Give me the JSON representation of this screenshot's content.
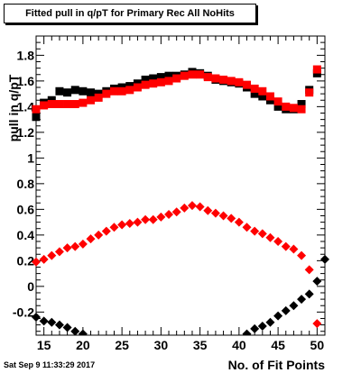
{
  "title": "Fitted pull in q/pT for Primary Rec All NoHits",
  "timestamp": "Sat Sep  9 11:33:29 2017",
  "chart_data": {
    "type": "scatter",
    "xlabel": "No. of Fit Points",
    "ylabel": "pull in q/pT",
    "xlim": [
      14,
      51
    ],
    "ylim": [
      -0.38,
      1.95
    ],
    "x_ticks": [
      15,
      20,
      25,
      30,
      35,
      40,
      45,
      50
    ],
    "y_ticks": [
      -0.2,
      0,
      0.2,
      0.4,
      0.6,
      0.8,
      1,
      1.2,
      1.4,
      1.6,
      1.8
    ],
    "grid": false,
    "legend": "none",
    "series": [
      {
        "color": "#000000",
        "marker": "square",
        "points": [
          [
            14,
            1.32
          ],
          [
            15,
            1.43
          ],
          [
            16,
            1.45
          ],
          [
            17,
            1.52
          ],
          [
            18,
            1.51
          ],
          [
            19,
            1.53
          ],
          [
            20,
            1.52
          ],
          [
            21,
            1.51
          ],
          [
            22,
            1.5
          ],
          [
            23,
            1.52
          ],
          [
            24,
            1.54
          ],
          [
            25,
            1.55
          ],
          [
            26,
            1.56
          ],
          [
            27,
            1.58
          ],
          [
            28,
            1.61
          ],
          [
            29,
            1.62
          ],
          [
            30,
            1.63
          ],
          [
            31,
            1.64
          ],
          [
            32,
            1.64
          ],
          [
            33,
            1.65
          ],
          [
            34,
            1.67
          ],
          [
            35,
            1.66
          ],
          [
            36,
            1.64
          ],
          [
            37,
            1.61
          ],
          [
            38,
            1.6
          ],
          [
            39,
            1.59
          ],
          [
            40,
            1.58
          ],
          [
            41,
            1.55
          ],
          [
            42,
            1.5
          ],
          [
            43,
            1.48
          ],
          [
            44,
            1.45
          ],
          [
            45,
            1.4
          ],
          [
            46,
            1.38
          ],
          [
            47,
            1.38
          ],
          [
            48,
            1.42
          ],
          [
            49,
            1.53
          ],
          [
            50,
            1.66
          ]
        ]
      },
      {
        "color": "#ff0000",
        "marker": "square",
        "points": [
          [
            14,
            1.38
          ],
          [
            15,
            1.41
          ],
          [
            16,
            1.42
          ],
          [
            17,
            1.42
          ],
          [
            18,
            1.42
          ],
          [
            19,
            1.42
          ],
          [
            20,
            1.43
          ],
          [
            21,
            1.45
          ],
          [
            22,
            1.47
          ],
          [
            23,
            1.5
          ],
          [
            24,
            1.52
          ],
          [
            25,
            1.52
          ],
          [
            26,
            1.53
          ],
          [
            27,
            1.55
          ],
          [
            28,
            1.57
          ],
          [
            29,
            1.58
          ],
          [
            30,
            1.59
          ],
          [
            31,
            1.6
          ],
          [
            32,
            1.62
          ],
          [
            33,
            1.64
          ],
          [
            34,
            1.65
          ],
          [
            35,
            1.65
          ],
          [
            36,
            1.63
          ],
          [
            37,
            1.62
          ],
          [
            38,
            1.61
          ],
          [
            39,
            1.6
          ],
          [
            40,
            1.59
          ],
          [
            41,
            1.57
          ],
          [
            42,
            1.54
          ],
          [
            43,
            1.52
          ],
          [
            44,
            1.48
          ],
          [
            45,
            1.44
          ],
          [
            46,
            1.4
          ],
          [
            47,
            1.39
          ],
          [
            48,
            1.38
          ],
          [
            49,
            1.51
          ],
          [
            50,
            1.69
          ]
        ]
      },
      {
        "color": "#ff0000",
        "marker": "diamond",
        "points": [
          [
            14,
            0.19
          ],
          [
            15,
            0.21
          ],
          [
            16,
            0.24
          ],
          [
            17,
            0.27
          ],
          [
            18,
            0.3
          ],
          [
            19,
            0.31
          ],
          [
            20,
            0.33
          ],
          [
            21,
            0.37
          ],
          [
            22,
            0.4
          ],
          [
            23,
            0.43
          ],
          [
            24,
            0.46
          ],
          [
            25,
            0.48
          ],
          [
            26,
            0.49
          ],
          [
            27,
            0.5
          ],
          [
            28,
            0.52
          ],
          [
            29,
            0.52
          ],
          [
            30,
            0.54
          ],
          [
            31,
            0.56
          ],
          [
            32,
            0.58
          ],
          [
            33,
            0.61
          ],
          [
            34,
            0.63
          ],
          [
            35,
            0.62
          ],
          [
            36,
            0.59
          ],
          [
            37,
            0.57
          ],
          [
            38,
            0.55
          ],
          [
            39,
            0.53
          ],
          [
            40,
            0.5
          ],
          [
            41,
            0.46
          ],
          [
            42,
            0.43
          ],
          [
            43,
            0.41
          ],
          [
            44,
            0.38
          ],
          [
            45,
            0.35
          ],
          [
            46,
            0.31
          ],
          [
            47,
            0.29
          ],
          [
            48,
            0.24
          ],
          [
            49,
            0.13
          ],
          [
            50,
            -0.29
          ]
        ]
      },
      {
        "color": "#000000",
        "marker": "diamond",
        "points": [
          [
            14,
            -0.24
          ],
          [
            15,
            -0.27
          ],
          [
            16,
            -0.28
          ],
          [
            17,
            -0.3
          ],
          [
            18,
            -0.32
          ],
          [
            19,
            -0.35
          ],
          [
            20,
            -0.37
          ],
          [
            41,
            -0.37
          ],
          [
            42,
            -0.33
          ],
          [
            43,
            -0.31
          ],
          [
            44,
            -0.28
          ],
          [
            45,
            -0.23
          ],
          [
            46,
            -0.19
          ],
          [
            47,
            -0.15
          ],
          [
            48,
            -0.1
          ],
          [
            49,
            -0.06
          ],
          [
            50,
            0.04
          ],
          [
            51,
            0.21
          ]
        ]
      }
    ]
  }
}
